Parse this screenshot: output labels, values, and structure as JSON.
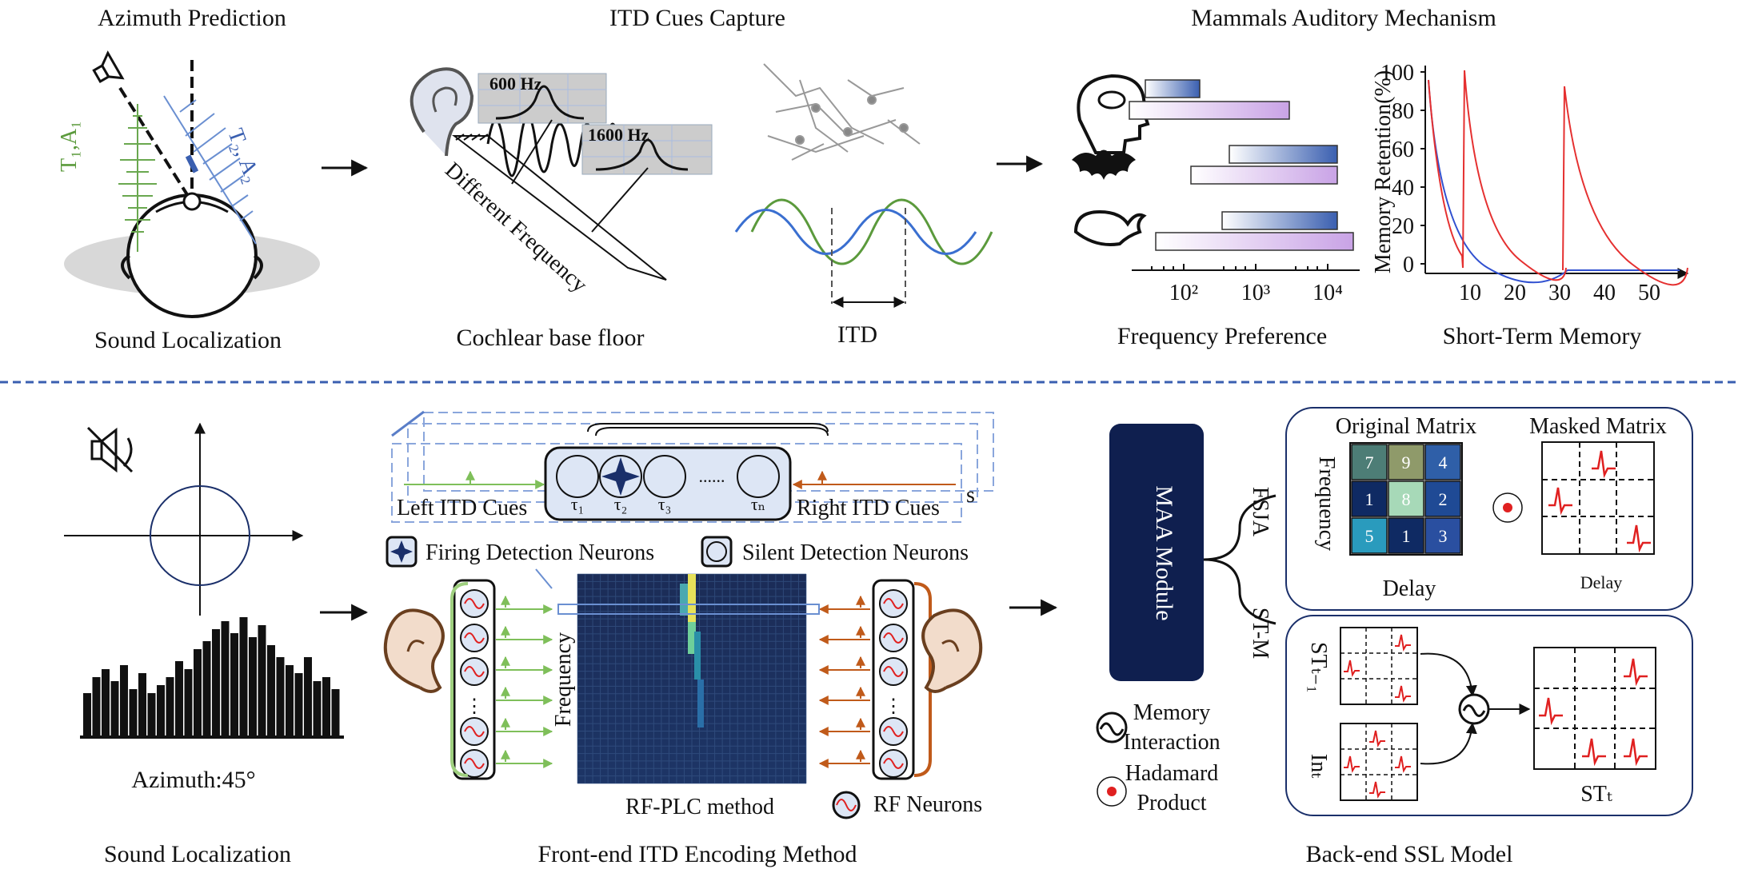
{
  "top": {
    "titles": {
      "azimuth_prediction": "Azimuth Prediction",
      "itd_cues_capture": "ITD Cues Capture",
      "mammals": "Mammals Auditory Mechanism"
    },
    "captions": {
      "sound_localization": "Sound Localization",
      "cochlear": "Cochlear base floor",
      "itd": "ITD",
      "freq_pref": "Frequency Preference",
      "stm": "Short-Term Memory"
    },
    "head_labels": {
      "t1a1": "T₁,A₁",
      "t2a2": "T₂, A₂"
    },
    "cochlea": {
      "diff_freq": "Different Frequency",
      "f1": "600 Hz",
      "f2": "1600 Hz"
    },
    "freq_axis": {
      "ticks": [
        "10²",
        "10³",
        "10⁴"
      ]
    },
    "memory_chart": {
      "ylabel": "Memory Retention(%)",
      "yticks": [
        "0",
        "20",
        "40",
        "60",
        "80",
        "100"
      ],
      "xticks": [
        "10",
        "20",
        "30",
        "40",
        "50"
      ]
    }
  },
  "bottom": {
    "captions": {
      "sound_localization": "Sound Localization",
      "front_end": "Front-end ITD Encoding Method",
      "back_end": "Back-end SSL Model"
    },
    "azimuth": "Azimuth:45°",
    "neurons": {
      "left_itd": "Left ITD Cues",
      "right_itd": "Right ITD Cues",
      "taus": [
        "τ₁",
        "τ₂",
        "τ₃",
        "τₙ"
      ],
      "dots": "......",
      "stack_label": "s",
      "firing": "Firing Detection Neurons",
      "silent": "Silent Detection Neurons",
      "frequency": "Frequency",
      "rf_plc": "RF-PLC method",
      "rf_neurons": "RF Neurons",
      "vdots": "⋮"
    },
    "maa": {
      "module": "MAA Module",
      "fsja": "FSJA",
      "stm": "ST-M",
      "memory_interaction": [
        "Memory",
        "Interaction"
      ],
      "hadamard": [
        "Hadamard",
        "Product"
      ]
    },
    "fsja": {
      "original": "Original Matrix",
      "masked": "Masked Matrix",
      "frequency": "Frequency",
      "delay": "Delay",
      "delay_small": "Delay",
      "matrix": [
        [
          "7",
          "9",
          "4"
        ],
        [
          "1",
          "8",
          "2"
        ],
        [
          "5",
          "1",
          "3"
        ]
      ]
    },
    "stm": {
      "st_prev": "STₜ₋₁",
      "in_t": "Inₜ",
      "st_t": "STₜ"
    }
  },
  "colors": {
    "blue_dark": "#0f1f4f",
    "blue": "#3a5fb0",
    "green": "#5b9a3c",
    "orange": "#c05a1a",
    "red": "#e02020",
    "purple": "#c9a3e6"
  }
}
